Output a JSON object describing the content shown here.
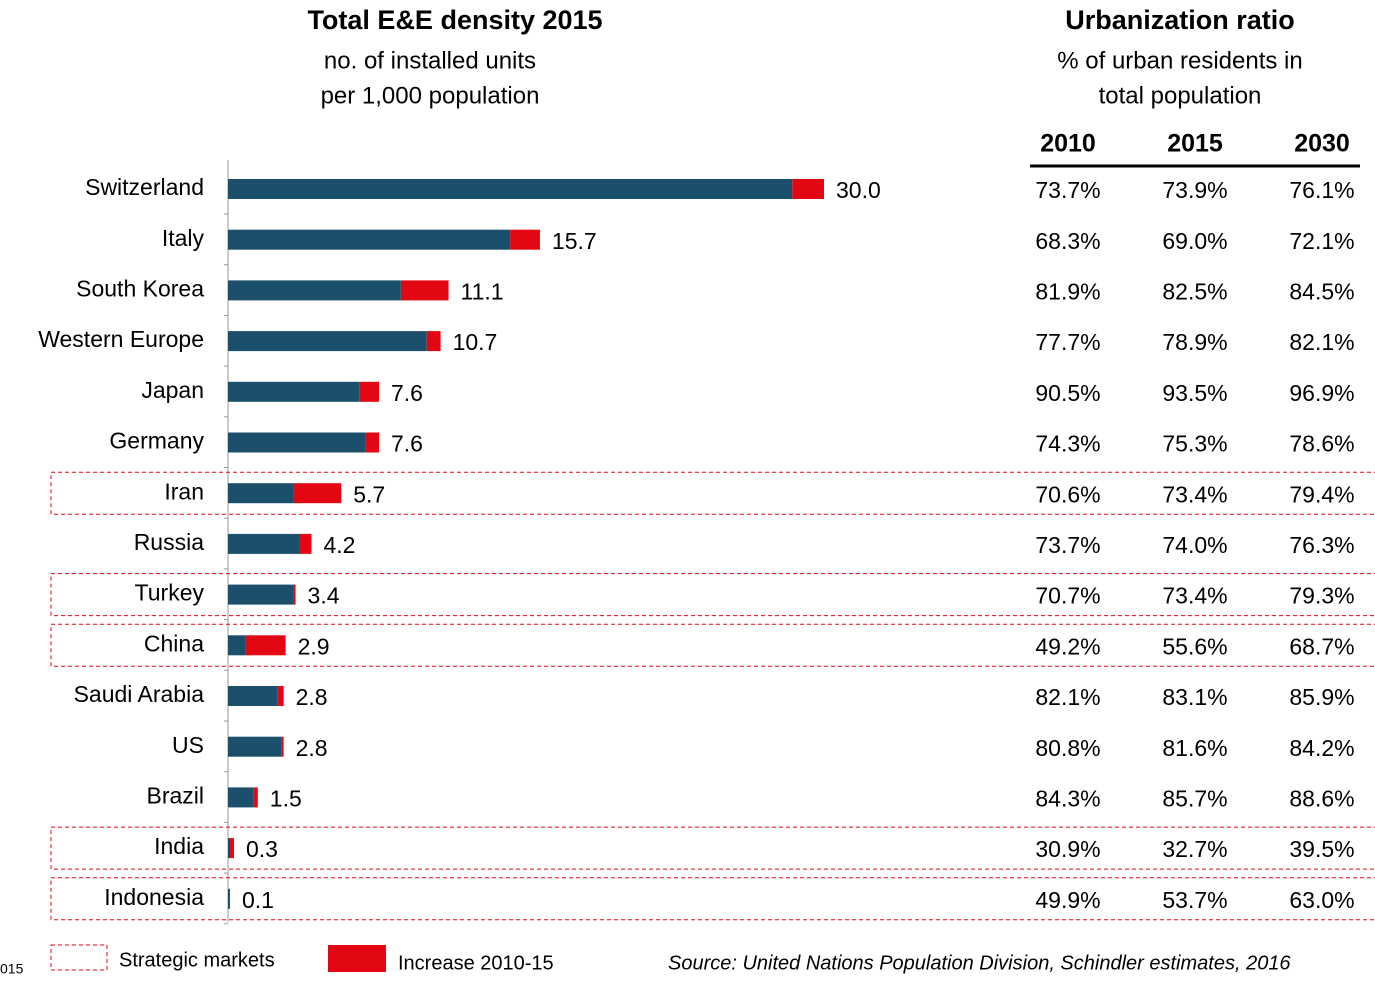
{
  "chart_data": {
    "type": "bar",
    "title": "Total E&E density 2015",
    "subtitle": [
      "no. of installed units",
      "per 1,000 population"
    ],
    "categories": [
      "Switzerland",
      "Italy",
      "South Korea",
      "Western Europe",
      "Japan",
      "Germany",
      "Iran",
      "Russia",
      "Turkey",
      "China",
      "Saudi Arabia",
      "US",
      "Brazil",
      "India",
      "Indonesia"
    ],
    "values": [
      30.0,
      15.7,
      11.1,
      10.7,
      7.6,
      7.6,
      5.7,
      4.2,
      3.4,
      2.9,
      2.8,
      2.8,
      1.5,
      0.3,
      0.1
    ],
    "value_labels": [
      "30.0",
      "15.7",
      "11.1",
      "10.7",
      "7.6",
      "7.6",
      "5.7",
      "4.2",
      "3.4",
      "2.9",
      "2.8",
      "2.8",
      "1.5",
      "0.3",
      "0.1"
    ],
    "series": [
      {
        "color": "#1b4f6b",
        "values": [
          28.4,
          14.2,
          8.7,
          10.0,
          6.6,
          6.9,
          3.3,
          3.6,
          3.3,
          0.9,
          2.5,
          2.7,
          1.3,
          0.1,
          0.05
        ]
      },
      {
        "name": "Increase 2010-15",
        "color": "#e30613",
        "values": [
          1.6,
          1.5,
          2.4,
          0.7,
          1.0,
          0.7,
          2.4,
          0.6,
          0.1,
          2.0,
          0.3,
          0.1,
          0.2,
          0.2,
          0.05
        ]
      }
    ],
    "strategic_markets": [
      "Iran",
      "Turkey",
      "China",
      "India",
      "Indonesia"
    ],
    "strategic_label": "Strategic markets"
  },
  "table": {
    "title": "Urbanization ratio",
    "subtitle": [
      "% of urban residents in",
      "total population"
    ],
    "columns": [
      "2010",
      "2015",
      "2030"
    ],
    "rows": [
      [
        "73.7%",
        "73.9%",
        "76.1%"
      ],
      [
        "68.3%",
        "69.0%",
        "72.1%"
      ],
      [
        "81.9%",
        "82.5%",
        "84.5%"
      ],
      [
        "77.7%",
        "78.9%",
        "82.1%"
      ],
      [
        "90.5%",
        "93.5%",
        "96.9%"
      ],
      [
        "74.3%",
        "75.3%",
        "78.6%"
      ],
      [
        "70.6%",
        "73.4%",
        "79.4%"
      ],
      [
        "73.7%",
        "74.0%",
        "76.3%"
      ],
      [
        "70.7%",
        "73.4%",
        "79.3%"
      ],
      [
        "49.2%",
        "55.6%",
        "68.7%"
      ],
      [
        "82.1%",
        "83.1%",
        "85.9%"
      ],
      [
        "80.8%",
        "81.6%",
        "84.2%"
      ],
      [
        "84.3%",
        "85.7%",
        "88.6%"
      ],
      [
        "30.9%",
        "32.7%",
        "39.5%"
      ],
      [
        "49.9%",
        "53.7%",
        "63.0%"
      ]
    ]
  },
  "footer": {
    "source": "Source: United Nations Population Division, Schindler estimates, 2016",
    "note": "015"
  }
}
